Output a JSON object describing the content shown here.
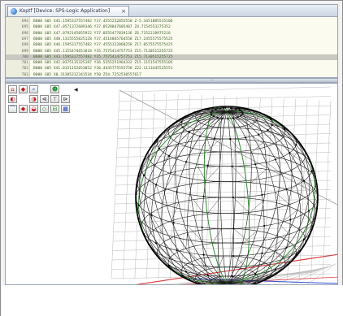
{
  "window": {
    "tab_title": "Koptf [Device: SPS-Logic Application]",
    "close_glyph": "×"
  },
  "code_lines": [
    {
      "ln": "694",
      "code": "B000 G05 X45.1595317557482 Y37.4555252855550 Z-5.3451885515106"
    },
    {
      "ln": "695",
      "code": "B000 G05 X47.0571372689346 Y37.0528847605407 Z4.7154553275352"
    },
    {
      "ln": "696",
      "code": "B000 G05 X47.0792145055922 Y37.0555477839136 Z6.7152218975218"
    },
    {
      "ln": "697",
      "code": "B000 G05 X48.1315555825128 Y37.4514865764558 Z17.2455575575525"
    },
    {
      "ln": "698",
      "code": "B000 G05 X46.1595317557482 Y37.4555122868258 Z17.0575575575425"
    },
    {
      "ln": "699",
      "code": "B000 G05 X45.1155474651818 Y35.7575414757753 Z15.7130515255725"
    },
    {
      "ln": "700",
      "code": "B000 G05 X43.1595317557482 Y35.7575414757753 Z15.7130515255725",
      "highlight": true
    },
    {
      "ln": "701",
      "code": "B000 G05 X42.0375115325187 Y36.5255251964332 Z15.1151547555105"
    },
    {
      "ln": "702",
      "code": "B000 G05 X41.0151152653052 Y36.4435775555758 Z22.1113445525551"
    },
    {
      "ln": "703",
      "code": "B000 G05 X0.31305312341534 Y50 Z54.7252530557617"
    }
  ],
  "toolbar": {
    "row1": [
      "⌂",
      "◆",
      "⌕",
      "",
      "☻"
    ],
    "row2": [
      "◐",
      "",
      "◑",
      "⊲",
      "⊤",
      "⊳"
    ],
    "row3": [
      "⌒",
      "◆",
      "◒",
      "◇",
      "⊟",
      "▦"
    ]
  },
  "icons": {
    "tab": "application-icon",
    "collapse": "collapse-arrow-icon",
    "grip": "splitter-grip-icon"
  },
  "colors": {
    "wire": "#1a1a1a",
    "meridian": "#2f8a2f",
    "grid": "#b9b9b9",
    "axis_red": "#d84040",
    "axis_blue": "#3050d0"
  },
  "grip_text": "⋯"
}
